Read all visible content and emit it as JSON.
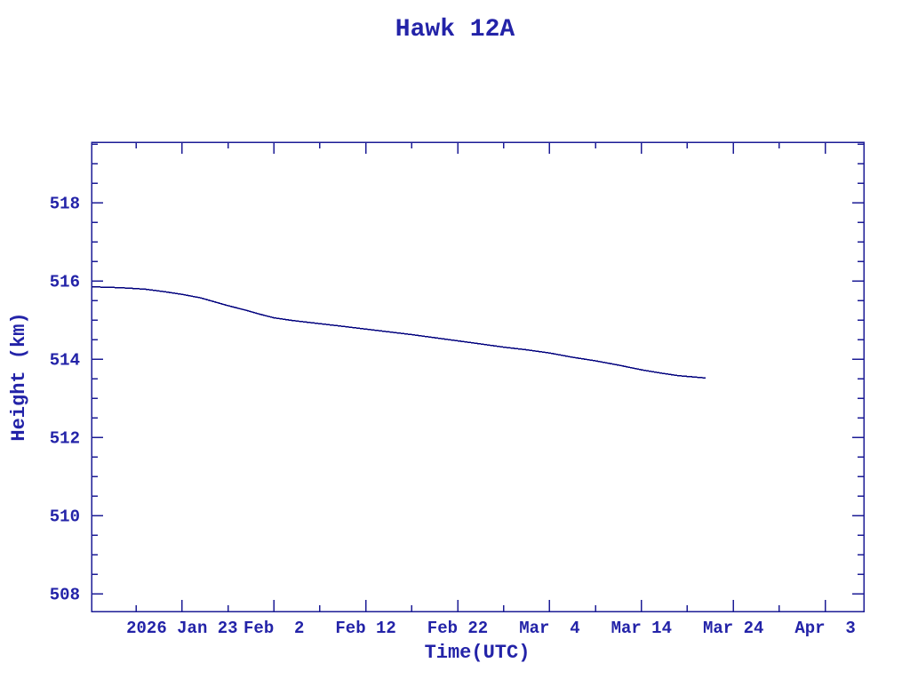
{
  "chart_data": {
    "type": "line",
    "title": "Hawk 12A",
    "xlabel": "Time(UTC)",
    "ylabel": "Height (km)",
    "legend": null,
    "grid": false,
    "colors": {
      "background": "#ffffff",
      "text": "#2323a8",
      "axis": "#1c1c96",
      "line": "#00007d"
    },
    "x_axis": {
      "unit": "day of year 2026",
      "range": [
        13.15,
        97.2
      ],
      "major_ticks": [
        {
          "t": 23,
          "label": "2026 Jan 23"
        },
        {
          "t": 33,
          "label": "Feb  2"
        },
        {
          "t": 43,
          "label": "Feb 12"
        },
        {
          "t": 53,
          "label": "Feb 22"
        },
        {
          "t": 63,
          "label": "Mar  4"
        },
        {
          "t": 73,
          "label": "Mar 14"
        },
        {
          "t": 83,
          "label": "Mar 24"
        },
        {
          "t": 93,
          "label": "Apr  3"
        }
      ],
      "minor_ticks": [
        18,
        28,
        38,
        48,
        58,
        68,
        78,
        88
      ]
    },
    "y_axis": {
      "range": [
        507.55,
        519.55
      ],
      "major_ticks": [
        508,
        510,
        512,
        514,
        516,
        518
      ],
      "minor_step": 0.5
    },
    "series": [
      {
        "name": "Hawk 12A height (km)",
        "points": [
          [
            13.2,
            515.85
          ],
          [
            15,
            515.84
          ],
          [
            17,
            515.82
          ],
          [
            19,
            515.79
          ],
          [
            21,
            515.73
          ],
          [
            23,
            515.66
          ],
          [
            25,
            515.57
          ],
          [
            26.5,
            515.47
          ],
          [
            28,
            515.37
          ],
          [
            30,
            515.25
          ],
          [
            31.5,
            515.15
          ],
          [
            33,
            515.06
          ],
          [
            35,
            514.99
          ],
          [
            38,
            514.91
          ],
          [
            40.5,
            514.84
          ],
          [
            43,
            514.77
          ],
          [
            45.5,
            514.7
          ],
          [
            48,
            514.63
          ],
          [
            50.5,
            514.55
          ],
          [
            53,
            514.47
          ],
          [
            55.5,
            514.39
          ],
          [
            58,
            514.31
          ],
          [
            60.5,
            514.24
          ],
          [
            63,
            514.16
          ],
          [
            65.5,
            514.05
          ],
          [
            68,
            513.96
          ],
          [
            70.5,
            513.85
          ],
          [
            73,
            513.73
          ],
          [
            75,
            513.65
          ],
          [
            77,
            513.58
          ],
          [
            78.5,
            513.55
          ],
          [
            80,
            513.52
          ]
        ]
      }
    ]
  }
}
